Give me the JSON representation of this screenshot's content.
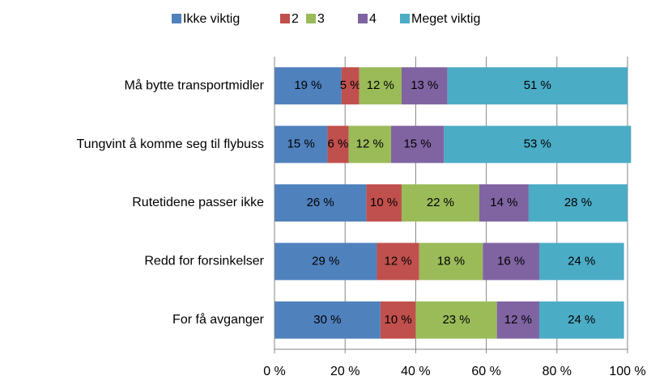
{
  "chart_data": {
    "type": "stacked_barh",
    "categories": [
      "Må bytte transportmidler",
      "Tungvint å komme seg til flybuss",
      "Rutetidene passer ikke",
      "Redd for forsinkelser",
      "For få avganger"
    ],
    "series": [
      {
        "name": "Ikke viktig",
        "color": "#4f81bd",
        "values": [
          19,
          15,
          26,
          29,
          30
        ],
        "value_labels": [
          "19 %",
          "15 %",
          "26 %",
          "29 %",
          "30 %"
        ]
      },
      {
        "name": "2",
        "color": "#c0504d",
        "values": [
          5,
          6,
          10,
          12,
          10
        ],
        "value_labels": [
          "5 %",
          "6 %",
          "10 %",
          "12 %",
          "10 %"
        ]
      },
      {
        "name": "3",
        "color": "#9bbb59",
        "values": [
          12,
          12,
          22,
          18,
          23
        ],
        "value_labels": [
          "12 %",
          "12 %",
          "22 %",
          "18 %",
          "23 %"
        ]
      },
      {
        "name": "4",
        "color": "#8064a2",
        "values": [
          13,
          15,
          14,
          16,
          12
        ],
        "value_labels": [
          "13 %",
          "15 %",
          "14 %",
          "16 %",
          "12 %"
        ]
      },
      {
        "name": "Meget viktig",
        "color": "#4bacc6",
        "values": [
          51,
          53,
          28,
          24,
          24
        ],
        "value_labels": [
          "51 %",
          "53 %",
          "28 %",
          "24 %",
          "24 %"
        ]
      }
    ],
    "xlim": [
      0,
      100
    ],
    "xticks": [
      {
        "value": 0,
        "label": "0 %"
      },
      {
        "value": 20,
        "label": "20 %"
      },
      {
        "value": 40,
        "label": "40 %"
      },
      {
        "value": 60,
        "label": "60 %"
      },
      {
        "value": 80,
        "label": "80 %"
      },
      {
        "value": 100,
        "label": "100 %"
      }
    ],
    "grid": true,
    "legend": "top"
  }
}
